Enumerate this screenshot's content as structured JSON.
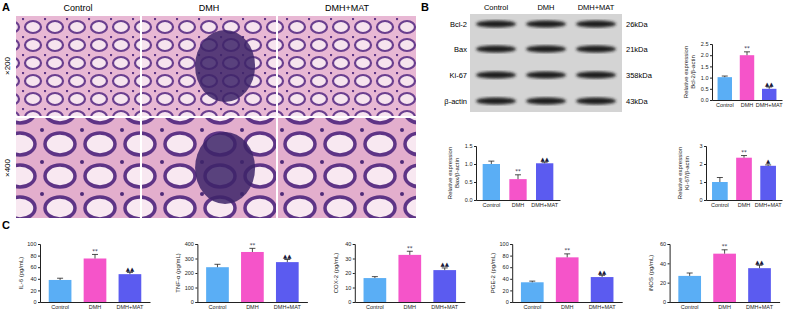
{
  "figure": {
    "panels": [
      "A",
      "B",
      "C"
    ],
    "histology": {
      "columns": [
        "Control",
        "DMH",
        "DMH+MAT"
      ],
      "rows": [
        "×200",
        "×400"
      ]
    },
    "blot": {
      "columns": [
        "Control",
        "DMH",
        "DMH+MAT"
      ],
      "rows": [
        {
          "protein": "Bcl-2",
          "size": "26kDa"
        },
        {
          "protein": "Bax",
          "size": "21kDa"
        },
        {
          "protein": "Ki-67",
          "size": "358kDa"
        },
        {
          "protein": "β-actin",
          "size": "43kDa"
        }
      ]
    }
  },
  "chart_data": [
    {
      "type": "bar",
      "y_label": [
        "Relative expression",
        "Bcl-2/β-actin"
      ],
      "categories": [
        "Control",
        "DMH",
        "DMH+MAT"
      ],
      "values": [
        1.02,
        2.0,
        0.5
      ],
      "errors": [
        0.05,
        0.15,
        0.08
      ],
      "annotations": [
        null,
        "**",
        "▲▲"
      ],
      "colors": [
        "#5aaef5",
        "#f554c9",
        "#5b5bf0"
      ],
      "ylim": [
        0,
        2.5
      ],
      "yticks": [
        {
          "value": 0,
          "label": "0.0"
        },
        0.5,
        {
          "value": 1,
          "label": "1.0"
        },
        1.5,
        {
          "value": 2,
          "label": "2.0"
        },
        2.5
      ]
    },
    {
      "type": "bar",
      "y_label": [
        "Relative expression",
        "Bax/β-actin"
      ],
      "categories": [
        "Control",
        "DMH",
        "DMH+MAT"
      ],
      "values": [
        1.0,
        0.58,
        1.02
      ],
      "errors": [
        0.08,
        0.12,
        0.03
      ],
      "annotations": [
        null,
        "**",
        "▲▲"
      ],
      "colors": [
        "#5aaef5",
        "#f554c9",
        "#5b5bf0"
      ],
      "ylim": [
        0,
        1.5
      ],
      "yticks": [
        {
          "value": 0,
          "label": "0.0"
        },
        0.5,
        {
          "value": 1,
          "label": "1.0"
        },
        1.5
      ]
    },
    {
      "type": "bar",
      "y_label": [
        "Relative expression",
        "Ki-67/β-actin"
      ],
      "categories": [
        "Control",
        "DMH",
        "DMH+MAT"
      ],
      "values": [
        1.0,
        2.35,
        1.9
      ],
      "errors": [
        0.25,
        0.12,
        0.05
      ],
      "annotations": [
        null,
        "**",
        "▲"
      ],
      "colors": [
        "#5aaef5",
        "#f554c9",
        "#5b5bf0"
      ],
      "ylim": [
        0,
        3
      ],
      "yticks": [
        0,
        1,
        2,
        3
      ]
    },
    {
      "type": "bar",
      "y_label": [
        "IL-6 (pg/mL)"
      ],
      "categories": [
        "Control",
        "DMH",
        "DMH+MAT"
      ],
      "values": [
        38,
        75,
        48
      ],
      "errors": [
        3,
        7,
        3
      ],
      "annotations": [
        null,
        "**",
        "▲▲"
      ],
      "colors": [
        "#5aaef5",
        "#f554c9",
        "#5b5bf0"
      ],
      "ylim": [
        0,
        100
      ],
      "yticks": [
        0,
        20,
        40,
        60,
        80,
        100
      ]
    },
    {
      "type": "bar",
      "y_label": [
        "TNF-α (pg/mL)"
      ],
      "categories": [
        "Control",
        "DMH",
        "DMH+MAT"
      ],
      "values": [
        240,
        345,
        275
      ],
      "errors": [
        20,
        25,
        18
      ],
      "annotations": [
        null,
        "**",
        "▲▲"
      ],
      "colors": [
        "#5aaef5",
        "#f554c9",
        "#5b5bf0"
      ],
      "ylim": [
        0,
        400
      ],
      "yticks": [
        0,
        100,
        200,
        300,
        400
      ]
    },
    {
      "type": "bar",
      "y_label": [
        "COX-2 (pg/mL)"
      ],
      "categories": [
        "Control",
        "DMH",
        "DMH+MAT"
      ],
      "values": [
        16.5,
        32.5,
        22
      ],
      "errors": [
        1,
        2.5,
        1.5
      ],
      "annotations": [
        null,
        "**",
        "▲▲"
      ],
      "colors": [
        "#5aaef5",
        "#f554c9",
        "#5b5bf0"
      ],
      "ylim": [
        0,
        40
      ],
      "yticks": [
        0,
        10,
        20,
        30,
        40
      ]
    },
    {
      "type": "bar",
      "y_label": [
        "PGE-2 (pg/mL)"
      ],
      "categories": [
        "Control",
        "DMH",
        "DMH+MAT"
      ],
      "values": [
        34,
        77,
        43
      ],
      "errors": [
        2,
        6,
        3
      ],
      "annotations": [
        null,
        "**",
        "▲▲"
      ],
      "colors": [
        "#5aaef5",
        "#f554c9",
        "#5b5bf0"
      ],
      "ylim": [
        0,
        100
      ],
      "yticks": [
        0,
        20,
        40,
        60,
        80,
        100
      ]
    },
    {
      "type": "bar",
      "y_label": [
        "iNOS (pg/mL)"
      ],
      "categories": [
        "Control",
        "DMH",
        "DMH+MAT"
      ],
      "values": [
        27,
        50,
        35
      ],
      "errors": [
        3,
        4,
        3
      ],
      "annotations": [
        null,
        "**",
        "▲▲"
      ],
      "colors": [
        "#5aaef5",
        "#f554c9",
        "#5b5bf0"
      ],
      "ylim": [
        0,
        60
      ],
      "yticks": [
        0,
        20,
        40,
        60
      ]
    }
  ]
}
